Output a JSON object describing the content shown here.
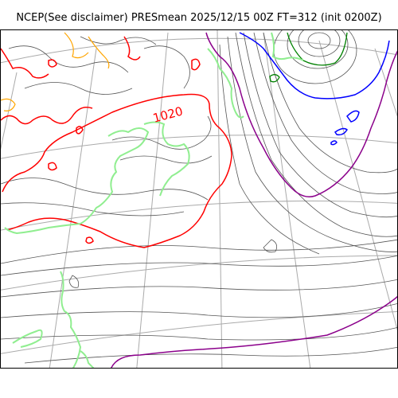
{
  "title": "NCEP(See disclaimer) PRESmean 2025/12/15 00Z FT=312 (init 0200Z)",
  "isobar_label": "1020",
  "colors": {
    "isobar_thin": "#555555",
    "isobar_1020": "#ff0000",
    "isobar_purple": "#8b008b",
    "isobar_blue": "#0000ff",
    "isobar_green": "#008000",
    "isobar_orange": "#ffa500",
    "coastline": "#90ee90",
    "graticule": "#aaaaaa"
  }
}
